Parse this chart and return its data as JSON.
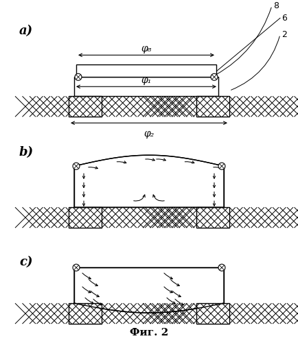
{
  "bg_color": "#ffffff",
  "line_color": "#000000",
  "title": "Фиг. 2",
  "label_a": "a)",
  "label_b": "b)",
  "label_c": "c)",
  "label_8": "8",
  "label_6": "6",
  "label_2": "2",
  "phi8": "φ₈",
  "phi1": "φ₁",
  "phi2": "φ₂"
}
